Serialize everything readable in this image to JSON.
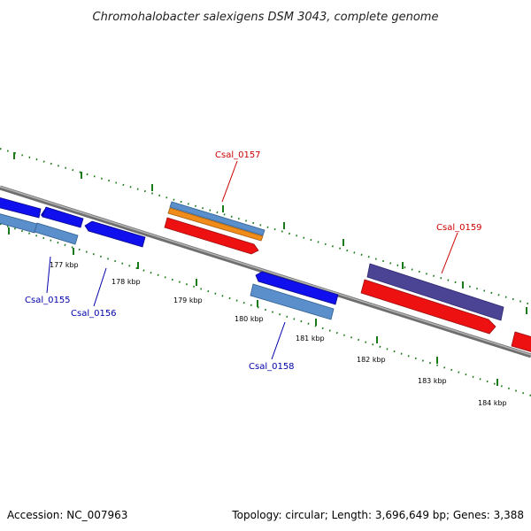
{
  "title": "Chromohalobacter salexigens DSM 3043, complete genome",
  "footer": {
    "accession": "Accession: NC_007963",
    "summary": "Topology: circular; Length: 3,696,649 bp; Genes: 3,388"
  },
  "ruler_labels": [
    "177 kbp",
    "178 kbp",
    "179 kbp",
    "180 kbp",
    "181 kbp",
    "182 kbp",
    "183 kbp",
    "184 kbp"
  ],
  "gene_labels": {
    "forward": [
      "Csal_0157",
      "Csal_0159"
    ],
    "reverse": [
      "Csal_0155",
      "Csal_0156",
      "Csal_0158"
    ]
  },
  "colors": {
    "forward_label": "#cc0000",
    "reverse_label": "#0000aa",
    "backbone": "#8a8a8a",
    "tick": "#1a7a1a",
    "cds_red": "#ee1111",
    "cds_blue": "#1010ee",
    "cds_lightblue": "#5b8fcc",
    "cds_orange": "#f08c1a",
    "cds_purple": "#4b4494"
  }
}
